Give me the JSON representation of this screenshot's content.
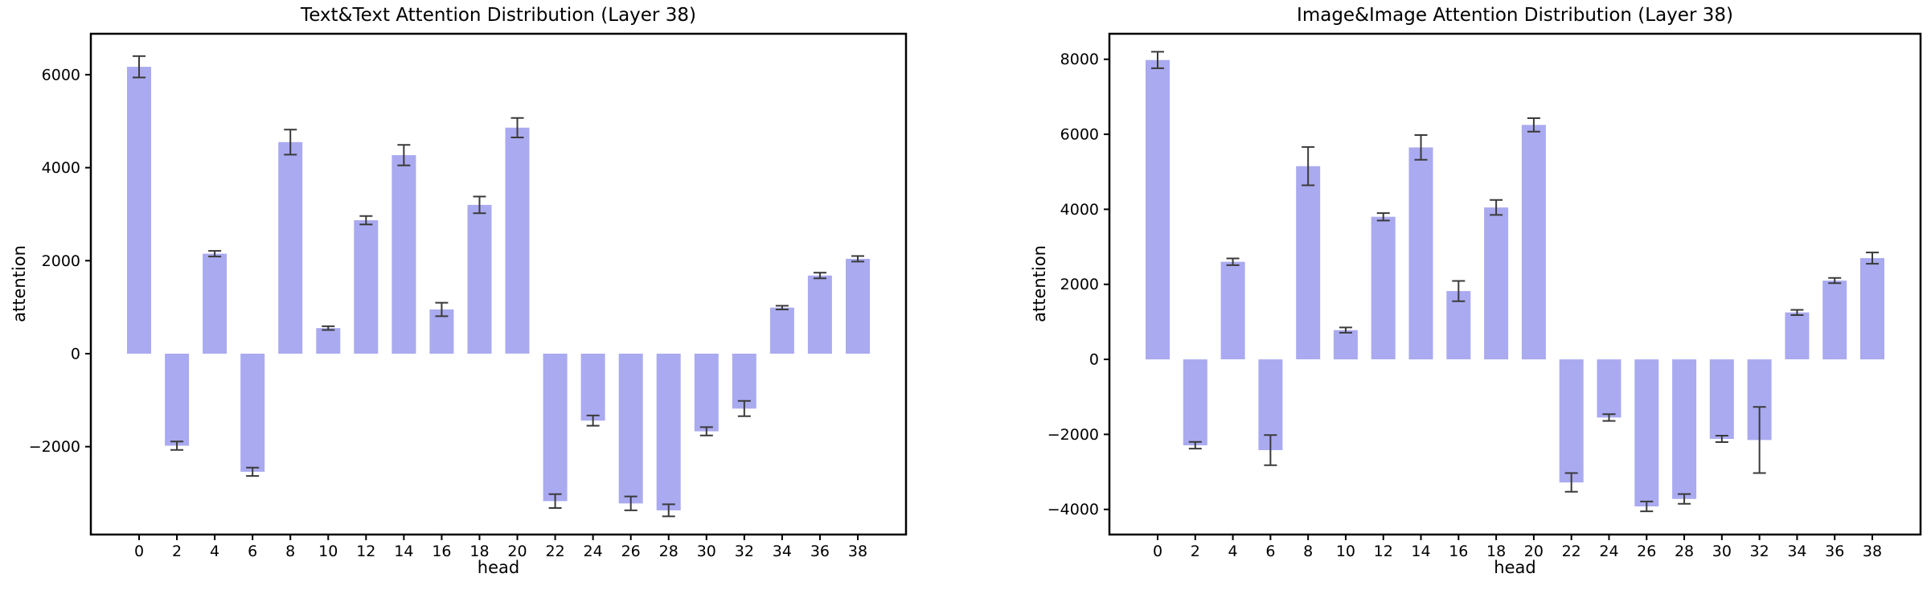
{
  "figure": {
    "background": "#ffffff",
    "bar_color": "#aaaaf0",
    "error_color": "#3a3a3a",
    "axis_color": "#000000"
  },
  "chart_data": [
    {
      "type": "bar",
      "title": "Text&Text Attention Distribution (Layer 38)",
      "xlabel": "head",
      "ylabel": "attention",
      "categories": [
        0,
        2,
        4,
        6,
        8,
        10,
        12,
        14,
        16,
        18,
        20,
        22,
        24,
        26,
        28,
        30,
        32,
        34,
        36,
        38
      ],
      "values": [
        6170,
        -1980,
        2150,
        -2540,
        4550,
        550,
        2870,
        4270,
        950,
        3200,
        4860,
        -3170,
        -1440,
        -3220,
        -3370,
        -1670,
        -1180,
        990,
        1680,
        2040
      ],
      "errors": [
        230,
        90,
        60,
        90,
        270,
        40,
        90,
        220,
        145,
        180,
        210,
        150,
        110,
        150,
        130,
        90,
        165,
        40,
        60,
        60
      ],
      "yticks": [
        -2000,
        0,
        2000,
        4000,
        6000
      ],
      "ylim": [
        -3890,
        6880
      ],
      "grid": false,
      "legend": null
    },
    {
      "type": "bar",
      "title": "Image&Image Attention Distribution (Layer 38)",
      "xlabel": "head",
      "ylabel": "attention",
      "categories": [
        0,
        2,
        4,
        6,
        8,
        10,
        12,
        14,
        16,
        18,
        20,
        22,
        24,
        26,
        28,
        30,
        32,
        34,
        36,
        38
      ],
      "values": [
        7980,
        -2290,
        2600,
        -2420,
        5150,
        780,
        3800,
        5650,
        1820,
        4050,
        6250,
        -3280,
        -1550,
        -3920,
        -3720,
        -2120,
        -2150,
        1250,
        2100,
        2700
      ],
      "errors": [
        220,
        90,
        90,
        400,
        510,
        70,
        100,
        330,
        270,
        200,
        180,
        250,
        90,
        130,
        130,
        85,
        880,
        70,
        70,
        150
      ],
      "yticks": [
        -4000,
        -2000,
        0,
        2000,
        4000,
        6000,
        8000
      ],
      "ylim": [
        -4670,
        8680
      ],
      "grid": false,
      "legend": null
    }
  ]
}
